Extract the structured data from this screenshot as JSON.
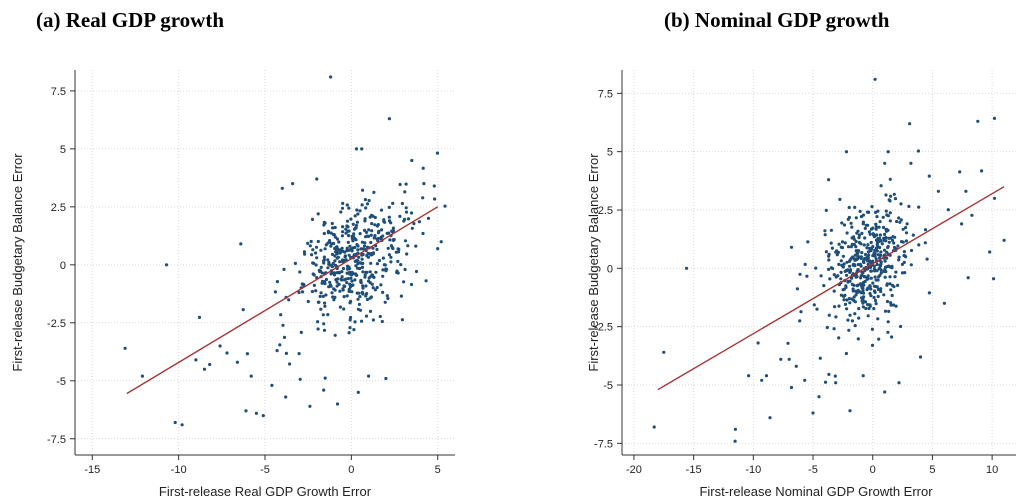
{
  "chart_data": [
    {
      "type": "scatter",
      "title": "(a)   Real GDP growth",
      "xlabel": "First-release Real GDP Growth Error",
      "ylabel": "First-release Budgetary Balance Error",
      "xlim": [
        -16,
        6
      ],
      "ylim": [
        -8.2,
        8.4
      ],
      "xticks": [
        -15,
        -10,
        -5,
        0,
        5
      ],
      "yticks": [
        -7.5,
        -5,
        -2.5,
        0,
        2.5,
        5,
        7.5
      ],
      "ytick_labels": [
        "-7.5",
        "-5",
        "-2.5",
        "0",
        "2.5",
        "5",
        "7.5"
      ],
      "grid": true,
      "fit_line": {
        "x": [
          -13,
          5
        ],
        "y": [
          -5.55,
          2.5
        ]
      },
      "point_color": "#1f4e79",
      "line_color": "#a83232",
      "points_note_outliers": [
        [
          -1.2,
          8.1
        ],
        [
          2.2,
          6.3
        ],
        [
          -13.1,
          -3.6
        ],
        [
          -12.1,
          -4.8
        ],
        [
          -10.7,
          0.0
        ],
        [
          -10.2,
          -6.8
        ],
        [
          -9.8,
          -6.9
        ],
        [
          -9.0,
          -4.1
        ],
        [
          -8.5,
          -4.5
        ],
        [
          -8.2,
          -4.3
        ],
        [
          -7.6,
          -3.5
        ],
        [
          -7.2,
          -3.8
        ],
        [
          -6.6,
          -4.2
        ],
        [
          -6.4,
          0.9
        ],
        [
          -6.1,
          -6.3
        ],
        [
          -5.8,
          -4.8
        ],
        [
          -5.5,
          -6.4
        ],
        [
          -5.1,
          -6.5
        ],
        [
          -4.6,
          -5.2
        ],
        [
          -4.0,
          3.3
        ],
        [
          -3.4,
          3.5
        ],
        [
          -2.0,
          3.7
        ],
        [
          -0.8,
          -6.0
        ],
        [
          0.3,
          5.0
        ],
        [
          0.6,
          5.0
        ],
        [
          3.5,
          4.5
        ],
        [
          4.2,
          3.5
        ],
        [
          4.8,
          3.4
        ],
        [
          5.0,
          0.7
        ],
        [
          -4.3,
          -3.7
        ],
        [
          -3.8,
          -5.7
        ],
        [
          -2.4,
          -6.1
        ],
        [
          -1.6,
          -5.4
        ],
        [
          0.4,
          -5.5
        ],
        [
          1.0,
          -4.8
        ],
        [
          2.0,
          -4.9
        ]
      ]
    },
    {
      "type": "scatter",
      "title": "(b) Nominal GDP growth",
      "xlabel": "First-release Nominal GDP Growth Error",
      "ylabel": "First-release Budgetary Balance Error",
      "xlim": [
        -21,
        12
      ],
      "ylim": [
        -8.0,
        8.5
      ],
      "xticks": [
        -20,
        -15,
        -10,
        -5,
        0,
        5,
        10
      ],
      "yticks": [
        -7.5,
        -5,
        -2.5,
        0,
        2.5,
        5,
        7.5
      ],
      "ytick_labels": [
        "-7.5",
        "-5",
        "-2.5",
        "0",
        "2.5",
        "5",
        "7.5"
      ],
      "grid": true,
      "fit_line": {
        "x": [
          -18,
          11
        ],
        "y": [
          -5.2,
          3.5
        ]
      },
      "point_color": "#1f4e79",
      "line_color": "#a83232",
      "points_note_outliers": [
        [
          0.2,
          8.1
        ],
        [
          8.8,
          6.3
        ],
        [
          -18.3,
          -6.8
        ],
        [
          -17.5,
          -3.6
        ],
        [
          -15.6,
          0.0
        ],
        [
          -11.5,
          -6.9
        ],
        [
          -10.4,
          -4.6
        ],
        [
          -9.6,
          -3.2
        ],
        [
          -9.3,
          -4.8
        ],
        [
          -8.9,
          -4.6
        ],
        [
          -8.6,
          -6.4
        ],
        [
          -7.7,
          -3.9
        ],
        [
          -7.0,
          -3.9
        ],
        [
          -6.8,
          0.9
        ],
        [
          -6.4,
          -4.2
        ],
        [
          -5.7,
          -4.8
        ],
        [
          -5.0,
          -6.2
        ],
        [
          -4.5,
          -5.5
        ],
        [
          -3.7,
          3.8
        ],
        [
          -2.2,
          5.0
        ],
        [
          1.0,
          4.5
        ],
        [
          1.3,
          5.0
        ],
        [
          3.2,
          4.5
        ],
        [
          5.5,
          3.3
        ],
        [
          7.8,
          3.3
        ],
        [
          10.2,
          3.0
        ],
        [
          11.0,
          1.2
        ],
        [
          -3.1,
          -4.9
        ],
        [
          -1.9,
          -6.1
        ],
        [
          -0.8,
          -4.6
        ],
        [
          1.0,
          -5.3
        ],
        [
          2.2,
          -4.9
        ],
        [
          4.0,
          -3.8
        ],
        [
          6.0,
          -1.5
        ],
        [
          8.0,
          -0.4
        ],
        [
          9.8,
          0.7
        ]
      ]
    }
  ]
}
